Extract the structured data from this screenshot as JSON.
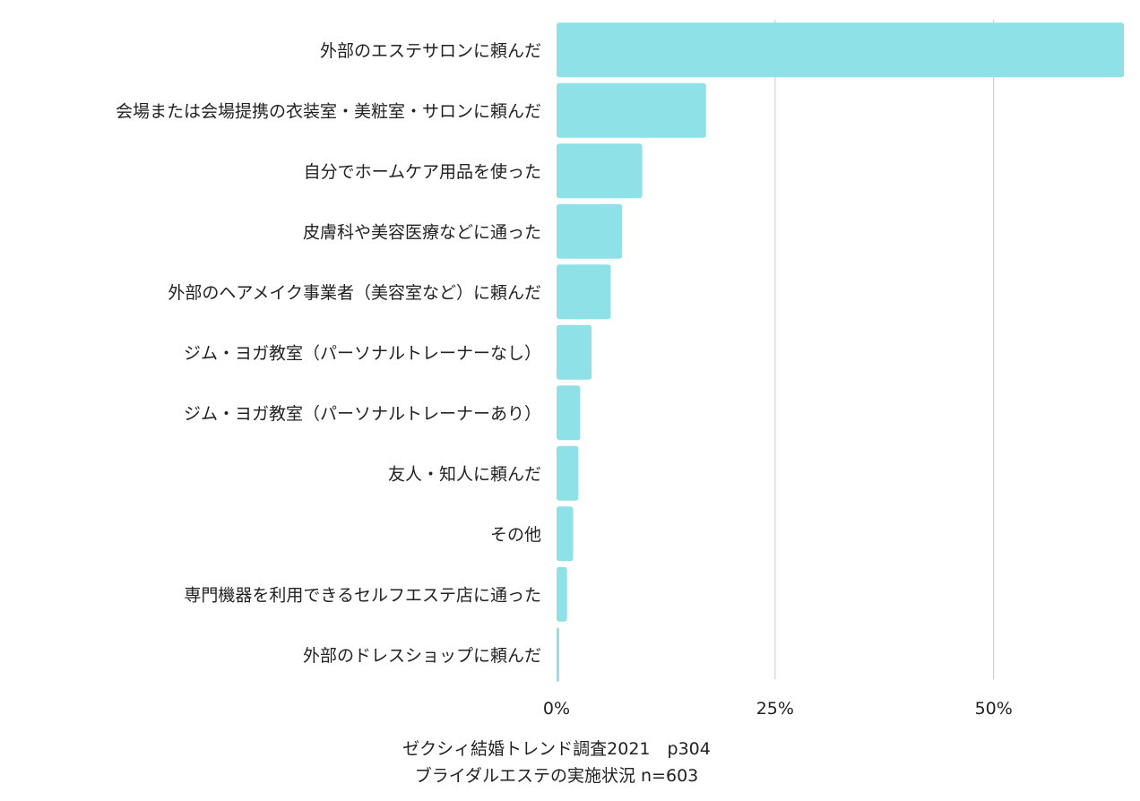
{
  "chart_data": {
    "type": "bar",
    "orientation": "horizontal",
    "categories": [
      "外部のエステサロンに頼んだ",
      "会場または会場提携の衣装室・美粧室・サロンに頼んだ",
      "自分でホームケア用品を使った",
      "皮膚科や美容医療などに通った",
      "外部のヘアメイク事業者（美容室など）に頼んだ",
      "ジム・ヨガ教室（パーソナルトレーナーなし）",
      "ジム・ヨガ教室（パーソナルトレーナーあり）",
      "友人・知人に頼んだ",
      "その他",
      "専門機器を利用できるセルフエステ店に通った",
      "外部のドレスショップに頼んだ"
    ],
    "values": [
      64.9,
      17.1,
      9.8,
      7.5,
      6.2,
      4.0,
      2.7,
      2.5,
      1.9,
      1.2,
      0.3
    ],
    "xlim": [
      0,
      65
    ],
    "ticks": [
      {
        "value": 0,
        "label": "0%"
      },
      {
        "value": 25,
        "label": "25%"
      },
      {
        "value": 50,
        "label": "50%"
      }
    ],
    "grid": true,
    "bar_color": "#8ee1e6",
    "grid_color": "#c8c8c8",
    "source_lines": [
      "ゼクシィ結婚トレンド調査2021　p304",
      "ブライダルエステの実施状況 n=603"
    ]
  }
}
